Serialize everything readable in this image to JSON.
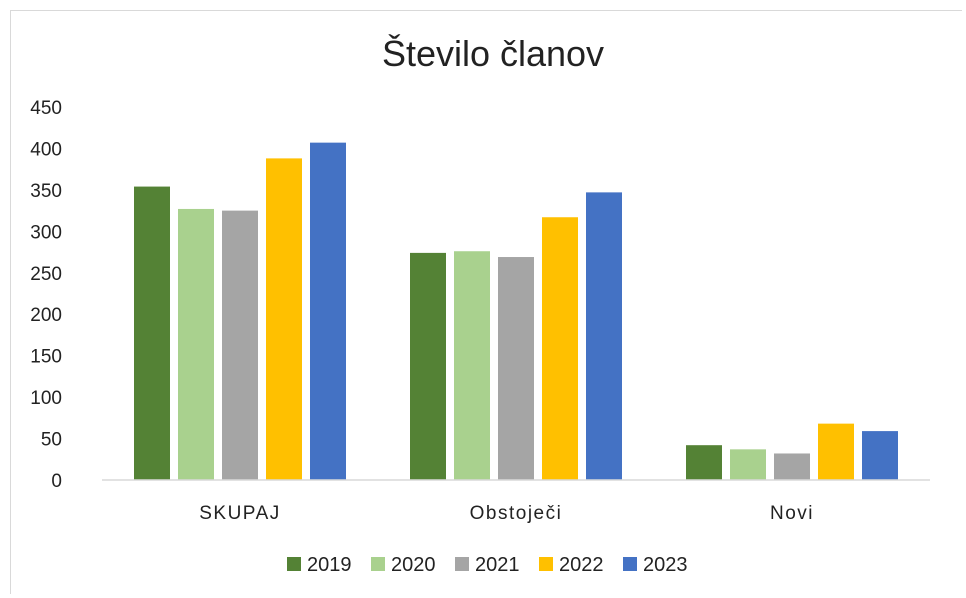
{
  "chart_data": {
    "type": "bar",
    "title": "Število članov",
    "xlabel": "",
    "ylabel": "",
    "ylim": [
      0,
      450
    ],
    "yticks": [
      "0",
      "50",
      "100",
      "150",
      "200",
      "250",
      "300",
      "350",
      "400",
      "450"
    ],
    "categories": [
      "SKUPAJ",
      "Obstoječi",
      "Novi"
    ],
    "series": [
      {
        "name": "2019",
        "color": "#548235",
        "values": [
          354,
          274,
          42
        ]
      },
      {
        "name": "2020",
        "color": "#a9d18e",
        "values": [
          327,
          276,
          37
        ]
      },
      {
        "name": "2021",
        "color": "#a5a5a5",
        "values": [
          325,
          269,
          32
        ]
      },
      {
        "name": "2022",
        "color": "#ffc000",
        "values": [
          388,
          317,
          68
        ]
      },
      {
        "name": "2023",
        "color": "#4472c4",
        "values": [
          407,
          347,
          59
        ]
      }
    ],
    "grid": false,
    "legend_position": "bottom"
  }
}
